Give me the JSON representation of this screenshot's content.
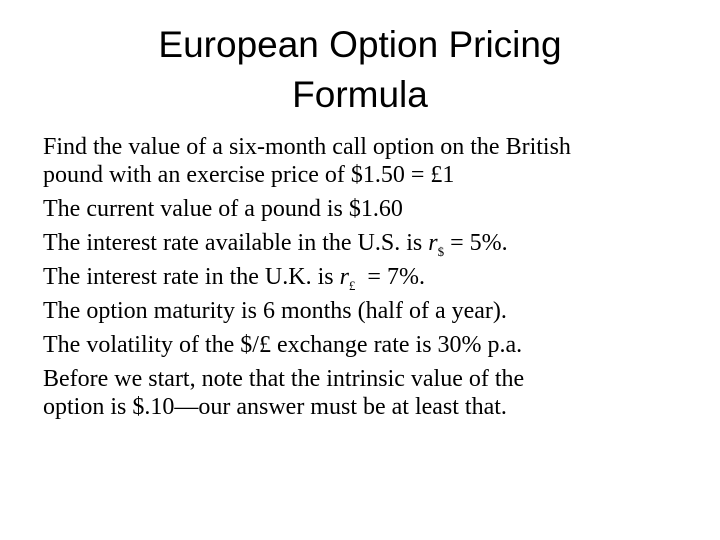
{
  "slide": {
    "title_line1": "European Option Pricing",
    "title_line2": "Formula",
    "bullets": [
      {
        "line1": "Find the value of a six-month call option on the British",
        "line2": "pound with an exercise price of $1.50 = £1"
      },
      {
        "text": "The current value of a pound is $1.60"
      },
      {
        "before": "The interest rate available in the U.S. is ",
        "var": "r",
        "sub": "$",
        "after": " = 5%."
      },
      {
        "before": "The interest rate in the U.K. is ",
        "var": "r",
        "sub": "£",
        "after": "  = 7%."
      },
      {
        "text": "The option maturity is 6 months (half of a year)."
      },
      {
        "text": "The volatility of the $/£ exchange rate is 30% p.a."
      },
      {
        "line1": "Before we start, note that the intrinsic value of the",
        "line2": "option is $.10—our answer must be at least that."
      }
    ]
  }
}
